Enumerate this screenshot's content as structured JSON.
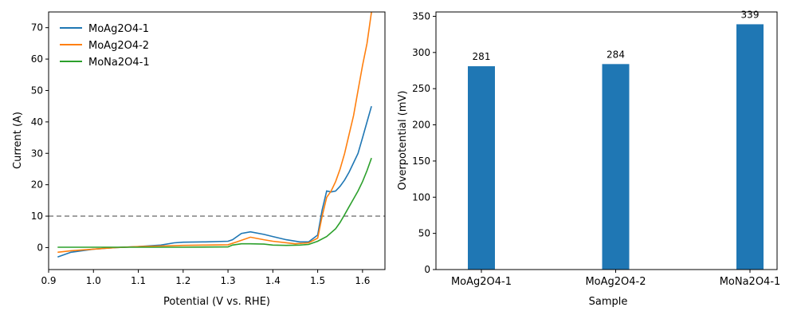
{
  "chart_data": [
    {
      "type": "line",
      "xlabel": "Potential (V vs. RHE)",
      "ylabel": "Current (A)",
      "xlim": [
        0.9,
        1.65
      ],
      "ylim": [
        -7,
        75
      ],
      "xticks": [
        "0.9",
        "1.0",
        "1.1",
        "1.2",
        "1.3",
        "1.4",
        "1.5",
        "1.6"
      ],
      "yticks": [
        "0",
        "10",
        "20",
        "30",
        "40",
        "50",
        "60",
        "70"
      ],
      "reference_line": {
        "y": 10,
        "style": "dashed",
        "color": "#808080"
      },
      "legend_position": "top-left",
      "series": [
        {
          "name": "MoAg2O4-1",
          "color": "#1f77b4",
          "x": [
            0.92,
            0.95,
            1.0,
            1.05,
            1.1,
            1.15,
            1.18,
            1.2,
            1.25,
            1.3,
            1.31,
            1.33,
            1.35,
            1.38,
            1.4,
            1.43,
            1.46,
            1.48,
            1.5,
            1.51,
            1.52,
            1.53,
            1.54,
            1.55,
            1.56,
            1.57,
            1.58,
            1.59,
            1.6,
            1.61,
            1.62
          ],
          "y": [
            -3.0,
            -1.5,
            -0.5,
            0.0,
            0.3,
            0.8,
            1.5,
            1.7,
            1.8,
            2.0,
            2.5,
            4.5,
            5.0,
            4.2,
            3.5,
            2.5,
            1.8,
            1.8,
            4.0,
            12.0,
            18.0,
            17.7,
            18.0,
            19.5,
            21.5,
            24.0,
            27.0,
            30.0,
            35.0,
            40.0,
            45.0
          ]
        },
        {
          "name": "MoAg2O4-2",
          "color": "#ff7f0e",
          "x": [
            0.92,
            0.95,
            1.0,
            1.05,
            1.1,
            1.15,
            1.2,
            1.25,
            1.3,
            1.32,
            1.35,
            1.38,
            1.4,
            1.45,
            1.48,
            1.5,
            1.51,
            1.52,
            1.53,
            1.54,
            1.55,
            1.56,
            1.57,
            1.58,
            1.59,
            1.6,
            1.61,
            1.615,
            1.62
          ],
          "y": [
            -1.5,
            -1.0,
            -0.5,
            0.0,
            0.3,
            0.5,
            0.7,
            0.8,
            0.9,
            1.8,
            3.3,
            2.5,
            2.0,
            1.2,
            1.5,
            3.0,
            10.0,
            16.0,
            18.0,
            21.0,
            25.0,
            30.0,
            36.0,
            42.0,
            50.0,
            58.0,
            65.0,
            70.0,
            75.0
          ]
        },
        {
          "name": "MoNa2O4-1",
          "color": "#2ca02c",
          "x": [
            0.92,
            0.95,
            1.0,
            1.1,
            1.2,
            1.3,
            1.31,
            1.33,
            1.35,
            1.38,
            1.4,
            1.43,
            1.46,
            1.48,
            1.5,
            1.52,
            1.54,
            1.55,
            1.56,
            1.57,
            1.58,
            1.59,
            1.6,
            1.61,
            1.62
          ],
          "y": [
            0.1,
            0.1,
            0.1,
            0.1,
            0.1,
            0.2,
            0.8,
            1.2,
            1.2,
            1.1,
            0.8,
            0.7,
            0.8,
            1.0,
            2.0,
            3.5,
            6.0,
            8.0,
            10.5,
            13.0,
            15.5,
            18.0,
            21.0,
            24.5,
            28.5
          ]
        }
      ]
    },
    {
      "type": "bar",
      "xlabel": "Sample",
      "ylabel": "Overpotential (mV)",
      "ylim": [
        0,
        356
      ],
      "yticks": [
        "0",
        "50",
        "100",
        "150",
        "200",
        "250",
        "300",
        "350"
      ],
      "categories": [
        "MoAg2O4-1",
        "MoAg2O4-2",
        "MoNa2O4-1"
      ],
      "values": [
        281,
        284,
        339
      ],
      "value_labels": [
        "281",
        "284",
        "339"
      ],
      "color": "#1f77b4"
    }
  ]
}
